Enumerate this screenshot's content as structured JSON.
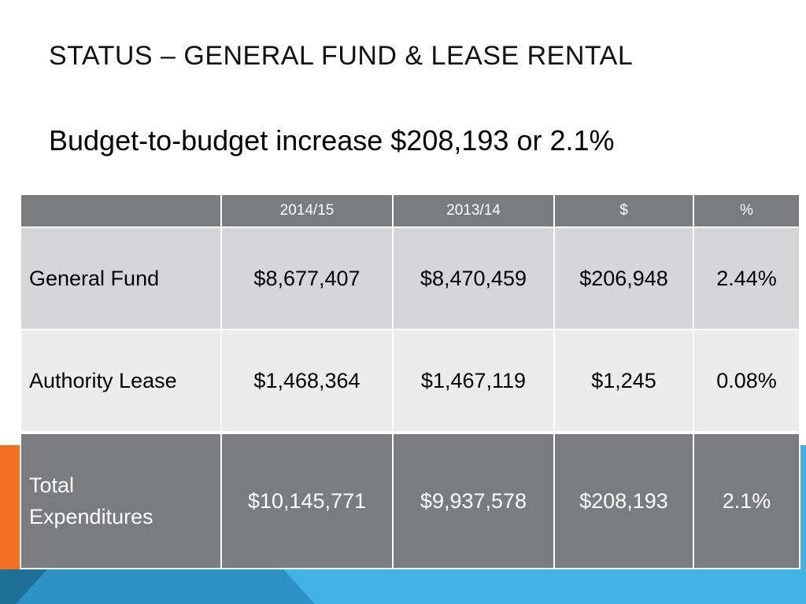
{
  "slide": {
    "title": "STATUS – GENERAL FUND & LEASE RENTAL",
    "subtitle": "Budget-to-budget increase $208,193 or 2.1%"
  },
  "table": {
    "headers": [
      "",
      "2014/15",
      "2013/14",
      "$",
      "%"
    ],
    "rows": [
      {
        "label": "General Fund",
        "y2014_15": "$8,677,407",
        "y2013_14": "$8,470,459",
        "dollar": "$206,948",
        "percent": "2.44%"
      },
      {
        "label": "Authority Lease",
        "y2014_15": "$1,468,364",
        "y2013_14": "$1,467,119",
        "dollar": "$1,245",
        "percent": "0.08%"
      }
    ],
    "total": {
      "label_line1": "Total",
      "label_line2": "Expenditures",
      "y2014_15": "$10,145,771",
      "y2013_14": "$9,937,578",
      "dollar": "$208,193",
      "percent": "2.1%"
    }
  },
  "colors": {
    "header_fill": "#7b7c80",
    "row1_fill": "#d6d6d8",
    "row2_fill": "#ececed",
    "accent_orange": "#f37021",
    "accent_blue": "#3fb1e3",
    "accent_dark_blue": "#2a8fbf"
  }
}
